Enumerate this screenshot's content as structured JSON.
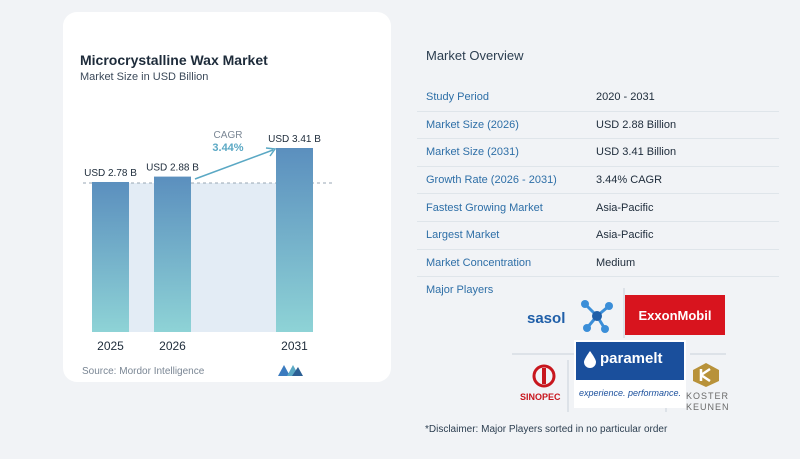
{
  "card": {
    "title": "Microcrystalline Wax Market",
    "subtitle": "Market Size in USD Billion",
    "source": "Source:  Mordor Intelligence"
  },
  "chart_data": {
    "type": "bar",
    "categories": [
      "2025",
      "2026",
      "2031"
    ],
    "values": [
      2.78,
      2.88,
      3.41
    ],
    "data_labels": [
      "USD 2.78 B",
      "USD 2.88 B",
      "USD 3.41 B"
    ],
    "title": "Microcrystalline Wax Market",
    "subtitle": "Market Size in USD Billion",
    "ylim": [
      0,
      3.41
    ],
    "annotation": {
      "label": "CAGR",
      "value": "3.44%"
    },
    "colors": {
      "bar_top": "#5b8fbe",
      "bar_bottom": "#8ed3d6",
      "accent": "#5aa8c4"
    }
  },
  "overview": {
    "title": "Market Overview",
    "rows": [
      {
        "key": "Study Period",
        "value": "2020 - 2031"
      },
      {
        "key": "Market Size (2026)",
        "value": "USD 2.88 Billion"
      },
      {
        "key": "Market Size (2031)",
        "value": "USD 3.41 Billion"
      },
      {
        "key": "Growth Rate (2026 - 2031)",
        "value": "3.44% CAGR"
      },
      {
        "key": "Fastest Growing Market",
        "value": "Asia-Pacific"
      },
      {
        "key": "Largest Market",
        "value": "Asia-Pacific"
      },
      {
        "key": "Market Concentration",
        "value": "Medium"
      }
    ],
    "major_players_label": "Major Players",
    "players": {
      "sasol": "sasol",
      "exxon": "ExxonMobil",
      "sinopec": "SINOPEC",
      "paramelt": "paramelt",
      "paramelt_tag": "experience. performance.",
      "koster_1": "KOSTER",
      "koster_2": "KEUNEN"
    },
    "disclaimer": "*Disclaimer: Major Players sorted in no particular order"
  }
}
